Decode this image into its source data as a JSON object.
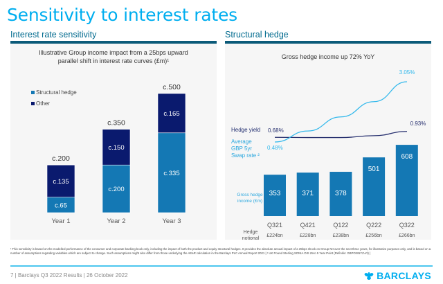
{
  "page": {
    "title": "Sensitivity to interest rates"
  },
  "left_section": {
    "heading": "Interest rate sensitivity",
    "subtitle_line1": "Illustrative Group income impact from a 25bps upward",
    "subtitle_line2": "parallel shift in interest rate curves (£m)¹"
  },
  "right_section": {
    "heading": "Structural hedge",
    "subtitle": "Gross hedge income up 72% YoY",
    "hedge_yield_label": "Hedge yield",
    "swap_label_line1": "Average",
    "swap_label_line2": "GBP 5yr",
    "swap_label_line3": "Swap rate ²",
    "gross_income_label_line1": "Gross hedge",
    "gross_income_label_line2": "income (£m)",
    "notional_label_line1": "Hedge",
    "notional_label_line2": "notional"
  },
  "chart_data": [
    {
      "type": "bar",
      "stacked": true,
      "title": "Illustrative Group income impact from a 25bps upward parallel shift in interest rate curves (£m)¹",
      "categories": [
        "Year 1",
        "Year 2",
        "Year 3"
      ],
      "series": [
        {
          "name": "Structural hedge",
          "color": "#1478B4",
          "values": [
            65,
            200,
            335
          ],
          "labels": [
            "c.65",
            "c.200",
            "c.335"
          ]
        },
        {
          "name": "Other",
          "color": "#0A1A6E",
          "values": [
            135,
            150,
            165
          ],
          "labels": [
            "c.135",
            "c.150",
            "c.165"
          ]
        }
      ],
      "totals": [
        200,
        350,
        500
      ],
      "total_labels": [
        "c.200",
        "c.350",
        "c.500"
      ],
      "legend_position": "top-left",
      "ylim": [
        0,
        500
      ]
    },
    {
      "type": "bar",
      "title": "Gross hedge income up 72% YoY",
      "categories": [
        "Q321",
        "Q421",
        "Q122",
        "Q222",
        "Q322"
      ],
      "series": [
        {
          "name": "Gross hedge income (£m)",
          "color": "#1478B4",
          "values": [
            353,
            371,
            378,
            501,
            608
          ]
        }
      ],
      "notional": [
        "£224bn",
        "£228bn",
        "£238bn",
        "£256bn",
        "£266bn"
      ],
      "ylim": [
        0,
        650
      ]
    },
    {
      "type": "line",
      "categories": [
        "Q321",
        "Q421",
        "Q122",
        "Q222",
        "Q322"
      ],
      "series": [
        {
          "name": "Hedge yield",
          "color": "#27306F",
          "values": [
            0.68,
            0.67,
            0.67,
            0.75,
            0.93
          ],
          "start_label": "0.68%",
          "end_label": "0.93%"
        },
        {
          "name": "Average GBP 5yr Swap rate ²",
          "color": "#33B9EC",
          "values": [
            0.48,
            0.95,
            1.55,
            2.2,
            3.05
          ],
          "start_label": "0.48%",
          "end_label": "3.05%"
        }
      ],
      "ylim": [
        0,
        3.2
      ]
    }
  ],
  "footnote": "¹ This sensitivity is based on the modelled performance of the consumer and corporate banking book only, including the impact of both the product and equity structural hedges. It provides the absolute annual impact of a 25bps shock on Group NII over the next three years, for illustrative purposes only, and is based on a number of assumptions regarding variables which are subject to change. Such assumptions might also differ from those underlying the AEaR calculation in the Barclays PLC Annual Report 2021 | ² UK Pound Sterling SONIA OIS Zero 5 Year Point (Refinitiv: GBPOIS5YZ=R) |",
  "footer": {
    "text": "7  |  Barclays Q3 2022 Results  |  26 October 2022",
    "brand": "BARCLAYS"
  }
}
